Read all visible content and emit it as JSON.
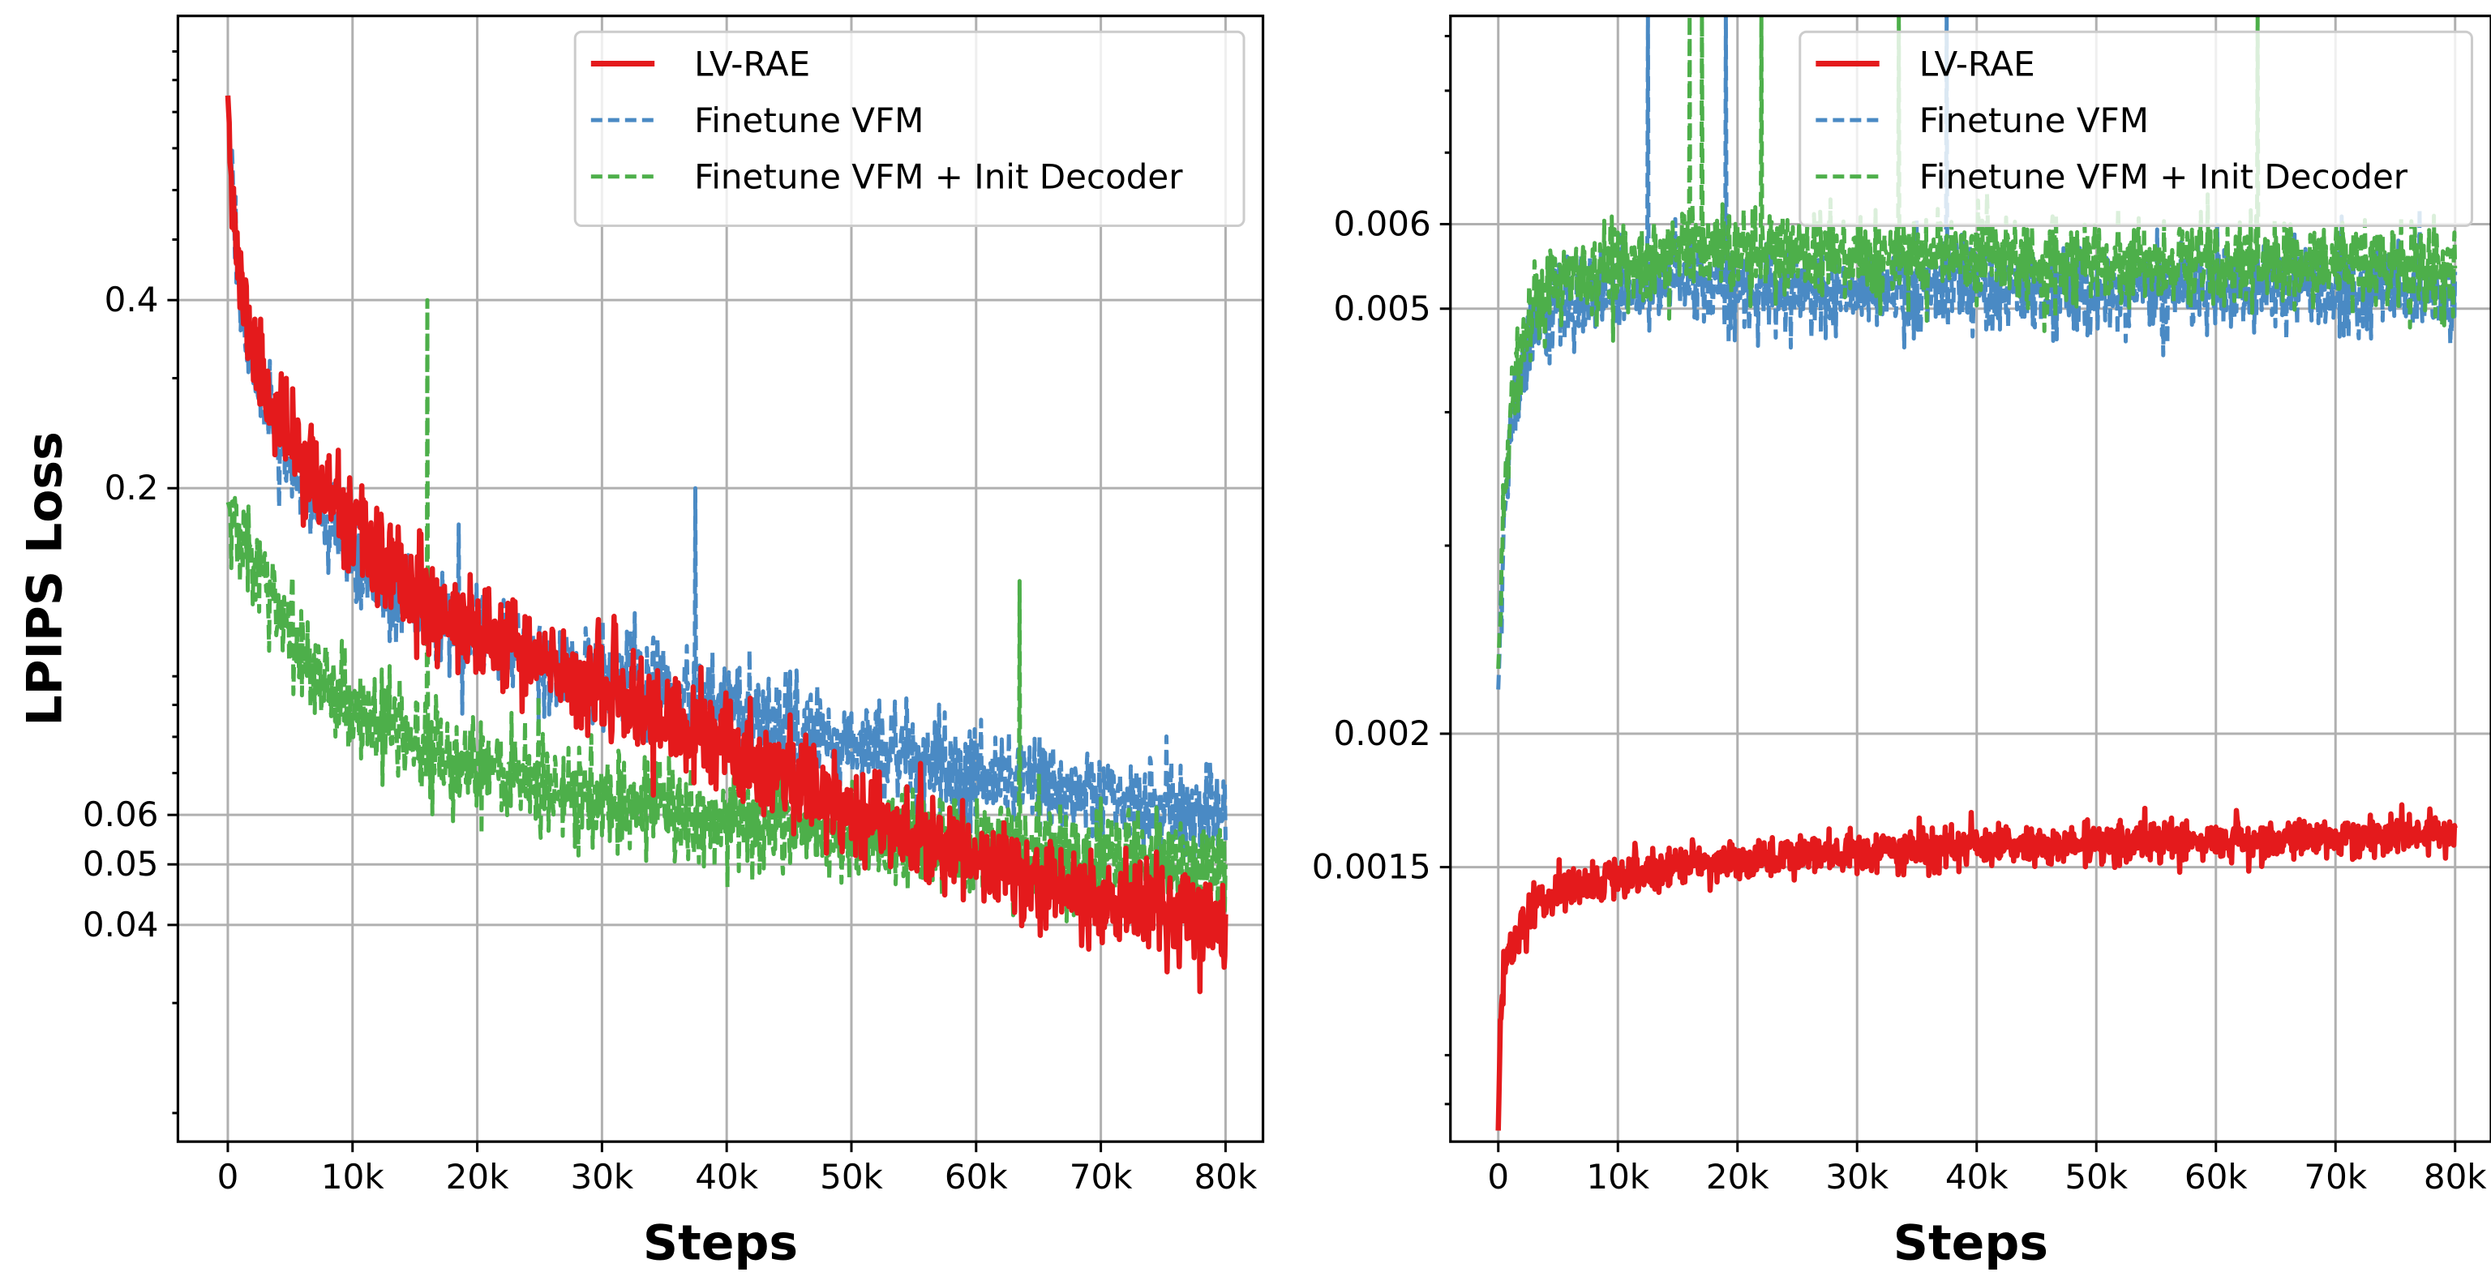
{
  "chart_data": [
    {
      "type": "line",
      "ylabel": "LPIPS Loss",
      "xlabel": "Steps",
      "yscale": "log",
      "xlim": [
        -4000,
        83000
      ],
      "ylim": [
        0.018,
        1.14
      ],
      "xticks": [
        0,
        10000,
        20000,
        30000,
        40000,
        50000,
        60000,
        70000,
        80000
      ],
      "xtick_labels": [
        "0",
        "10k",
        "20k",
        "30k",
        "40k",
        "50k",
        "60k",
        "70k",
        "80k"
      ],
      "yticks": [
        0.04,
        0.05,
        0.06,
        0.2,
        0.4
      ],
      "ytick_labels": [
        "0.04",
        "0.05",
        "0.06",
        "0.2",
        "0.4"
      ],
      "grid": true,
      "legend_position": "top-right",
      "series": [
        {
          "name": "LV-RAE",
          "color": "#e41a1c",
          "style": "solid",
          "points": [
            [
              0,
              0.85
            ],
            [
              500,
              0.55
            ],
            [
              1000,
              0.42
            ],
            [
              2000,
              0.34
            ],
            [
              3000,
              0.29
            ],
            [
              5000,
              0.24
            ],
            [
              7500,
              0.2
            ],
            [
              10000,
              0.17
            ],
            [
              12500,
              0.15
            ],
            [
              15000,
              0.135
            ],
            [
              20000,
              0.118
            ],
            [
              25000,
              0.105
            ],
            [
              30000,
              0.095
            ],
            [
              35000,
              0.085
            ],
            [
              40000,
              0.077
            ],
            [
              45000,
              0.07
            ],
            [
              50000,
              0.062
            ],
            [
              55000,
              0.056
            ],
            [
              60000,
              0.051
            ],
            [
              65000,
              0.047
            ],
            [
              70000,
              0.044
            ],
            [
              75000,
              0.042
            ],
            [
              80000,
              0.04
            ]
          ],
          "spikes": [
            [
              32500,
              0.11
            ]
          ]
        },
        {
          "name": "Finetune VFM",
          "color": "#4a8ac4",
          "style": "dashed",
          "points": [
            [
              0,
              0.85
            ],
            [
              500,
              0.54
            ],
            [
              1000,
              0.41
            ],
            [
              2000,
              0.32
            ],
            [
              3000,
              0.27
            ],
            [
              5000,
              0.22
            ],
            [
              7500,
              0.18
            ],
            [
              10000,
              0.155
            ],
            [
              12500,
              0.14
            ],
            [
              15000,
              0.13
            ],
            [
              20000,
              0.118
            ],
            [
              25000,
              0.108
            ],
            [
              30000,
              0.1
            ],
            [
              35000,
              0.094
            ],
            [
              40000,
              0.088
            ],
            [
              45000,
              0.083
            ],
            [
              50000,
              0.078
            ],
            [
              55000,
              0.074
            ],
            [
              60000,
              0.07
            ],
            [
              65000,
              0.067
            ],
            [
              70000,
              0.064
            ],
            [
              75000,
              0.062
            ],
            [
              80000,
              0.06
            ]
          ],
          "spikes": [
            [
              18500,
              0.175
            ],
            [
              37500,
              0.2
            ]
          ]
        },
        {
          "name": "Finetune VFM + Init Decoder",
          "color": "#4daf4a",
          "style": "dashed",
          "points": [
            [
              0,
              0.19
            ],
            [
              1000,
              0.165
            ],
            [
              2500,
              0.145
            ],
            [
              5000,
              0.118
            ],
            [
              7500,
              0.1
            ],
            [
              10000,
              0.09
            ],
            [
              12500,
              0.084
            ],
            [
              15000,
              0.079
            ],
            [
              20000,
              0.072
            ],
            [
              25000,
              0.067
            ],
            [
              30000,
              0.064
            ],
            [
              35000,
              0.061
            ],
            [
              40000,
              0.059
            ],
            [
              45000,
              0.057
            ],
            [
              50000,
              0.055
            ],
            [
              55000,
              0.054
            ],
            [
              60000,
              0.053
            ],
            [
              65000,
              0.052
            ],
            [
              70000,
              0.051
            ],
            [
              75000,
              0.05
            ],
            [
              80000,
              0.049
            ]
          ],
          "spikes": [
            [
              16000,
              0.4
            ],
            [
              63500,
              0.142
            ]
          ]
        }
      ]
    },
    {
      "type": "line",
      "xlabel": "Steps",
      "yscale": "log",
      "xlim": [
        -4000,
        83000
      ],
      "ylim": [
        0.00083,
        0.0094
      ],
      "xticks": [
        0,
        10000,
        20000,
        30000,
        40000,
        50000,
        60000,
        70000,
        80000
      ],
      "xtick_labels": [
        "0",
        "10k",
        "20k",
        "30k",
        "40k",
        "50k",
        "60k",
        "70k",
        "80k"
      ],
      "yticks": [
        0.0015,
        0.002,
        0.005,
        0.006
      ],
      "ytick_labels": [
        "0.0015",
        "0.002",
        "0.005",
        "0.006"
      ],
      "grid": true,
      "legend_position": "top-right",
      "series": [
        {
          "name": "LV-RAE",
          "color": "#e41a1c",
          "style": "solid",
          "points": [
            [
              0,
              0.00085
            ],
            [
              200,
              0.0011
            ],
            [
              500,
              0.00122
            ],
            [
              1500,
              0.00128
            ],
            [
              3000,
              0.00138
            ],
            [
              5000,
              0.00142
            ],
            [
              10000,
              0.00147
            ],
            [
              15000,
              0.0015
            ],
            [
              20000,
              0.00152
            ],
            [
              30000,
              0.00155
            ],
            [
              40000,
              0.00157
            ],
            [
              50000,
              0.00158
            ],
            [
              60000,
              0.00159
            ],
            [
              70000,
              0.0016
            ],
            [
              80000,
              0.00161
            ]
          ],
          "spikes": []
        },
        {
          "name": "Finetune VFM",
          "color": "#4a8ac4",
          "style": "dashed",
          "points": [
            [
              0,
              0.0022
            ],
            [
              500,
              0.0032
            ],
            [
              1000,
              0.0038
            ],
            [
              2000,
              0.0044
            ],
            [
              3000,
              0.0048
            ],
            [
              5000,
              0.005
            ],
            [
              10000,
              0.0052
            ],
            [
              15000,
              0.0053
            ],
            [
              20000,
              0.0052
            ],
            [
              30000,
              0.0052
            ],
            [
              40000,
              0.0052
            ],
            [
              50000,
              0.0052
            ],
            [
              60000,
              0.0052
            ],
            [
              70000,
              0.0052
            ],
            [
              80000,
              0.0052
            ]
          ],
          "spikes": [
            [
              12500,
              0.0094
            ],
            [
              19000,
              0.0094
            ],
            [
              37500,
              0.0094
            ],
            [
              70500,
              0.0061
            ],
            [
              77000,
              0.0062
            ]
          ]
        },
        {
          "name": "Finetune VFM + Init Decoder",
          "color": "#4daf4a",
          "style": "dashed",
          "points": [
            [
              0,
              0.0023
            ],
            [
              500,
              0.0033
            ],
            [
              1000,
              0.004
            ],
            [
              2000,
              0.0046
            ],
            [
              3000,
              0.005
            ],
            [
              5000,
              0.0053
            ],
            [
              10000,
              0.0055
            ],
            [
              15000,
              0.0057
            ],
            [
              20000,
              0.0057
            ],
            [
              30000,
              0.0056
            ],
            [
              40000,
              0.0056
            ],
            [
              50000,
              0.0055
            ],
            [
              60000,
              0.0055
            ],
            [
              70000,
              0.0055
            ],
            [
              80000,
              0.0054
            ]
          ],
          "spikes": [
            [
              16000,
              0.0094
            ],
            [
              17000,
              0.0094
            ],
            [
              22000,
              0.0094
            ],
            [
              33500,
              0.0094
            ],
            [
              63500,
              0.0094
            ],
            [
              9500,
              0.0061
            ]
          ]
        }
      ]
    }
  ]
}
